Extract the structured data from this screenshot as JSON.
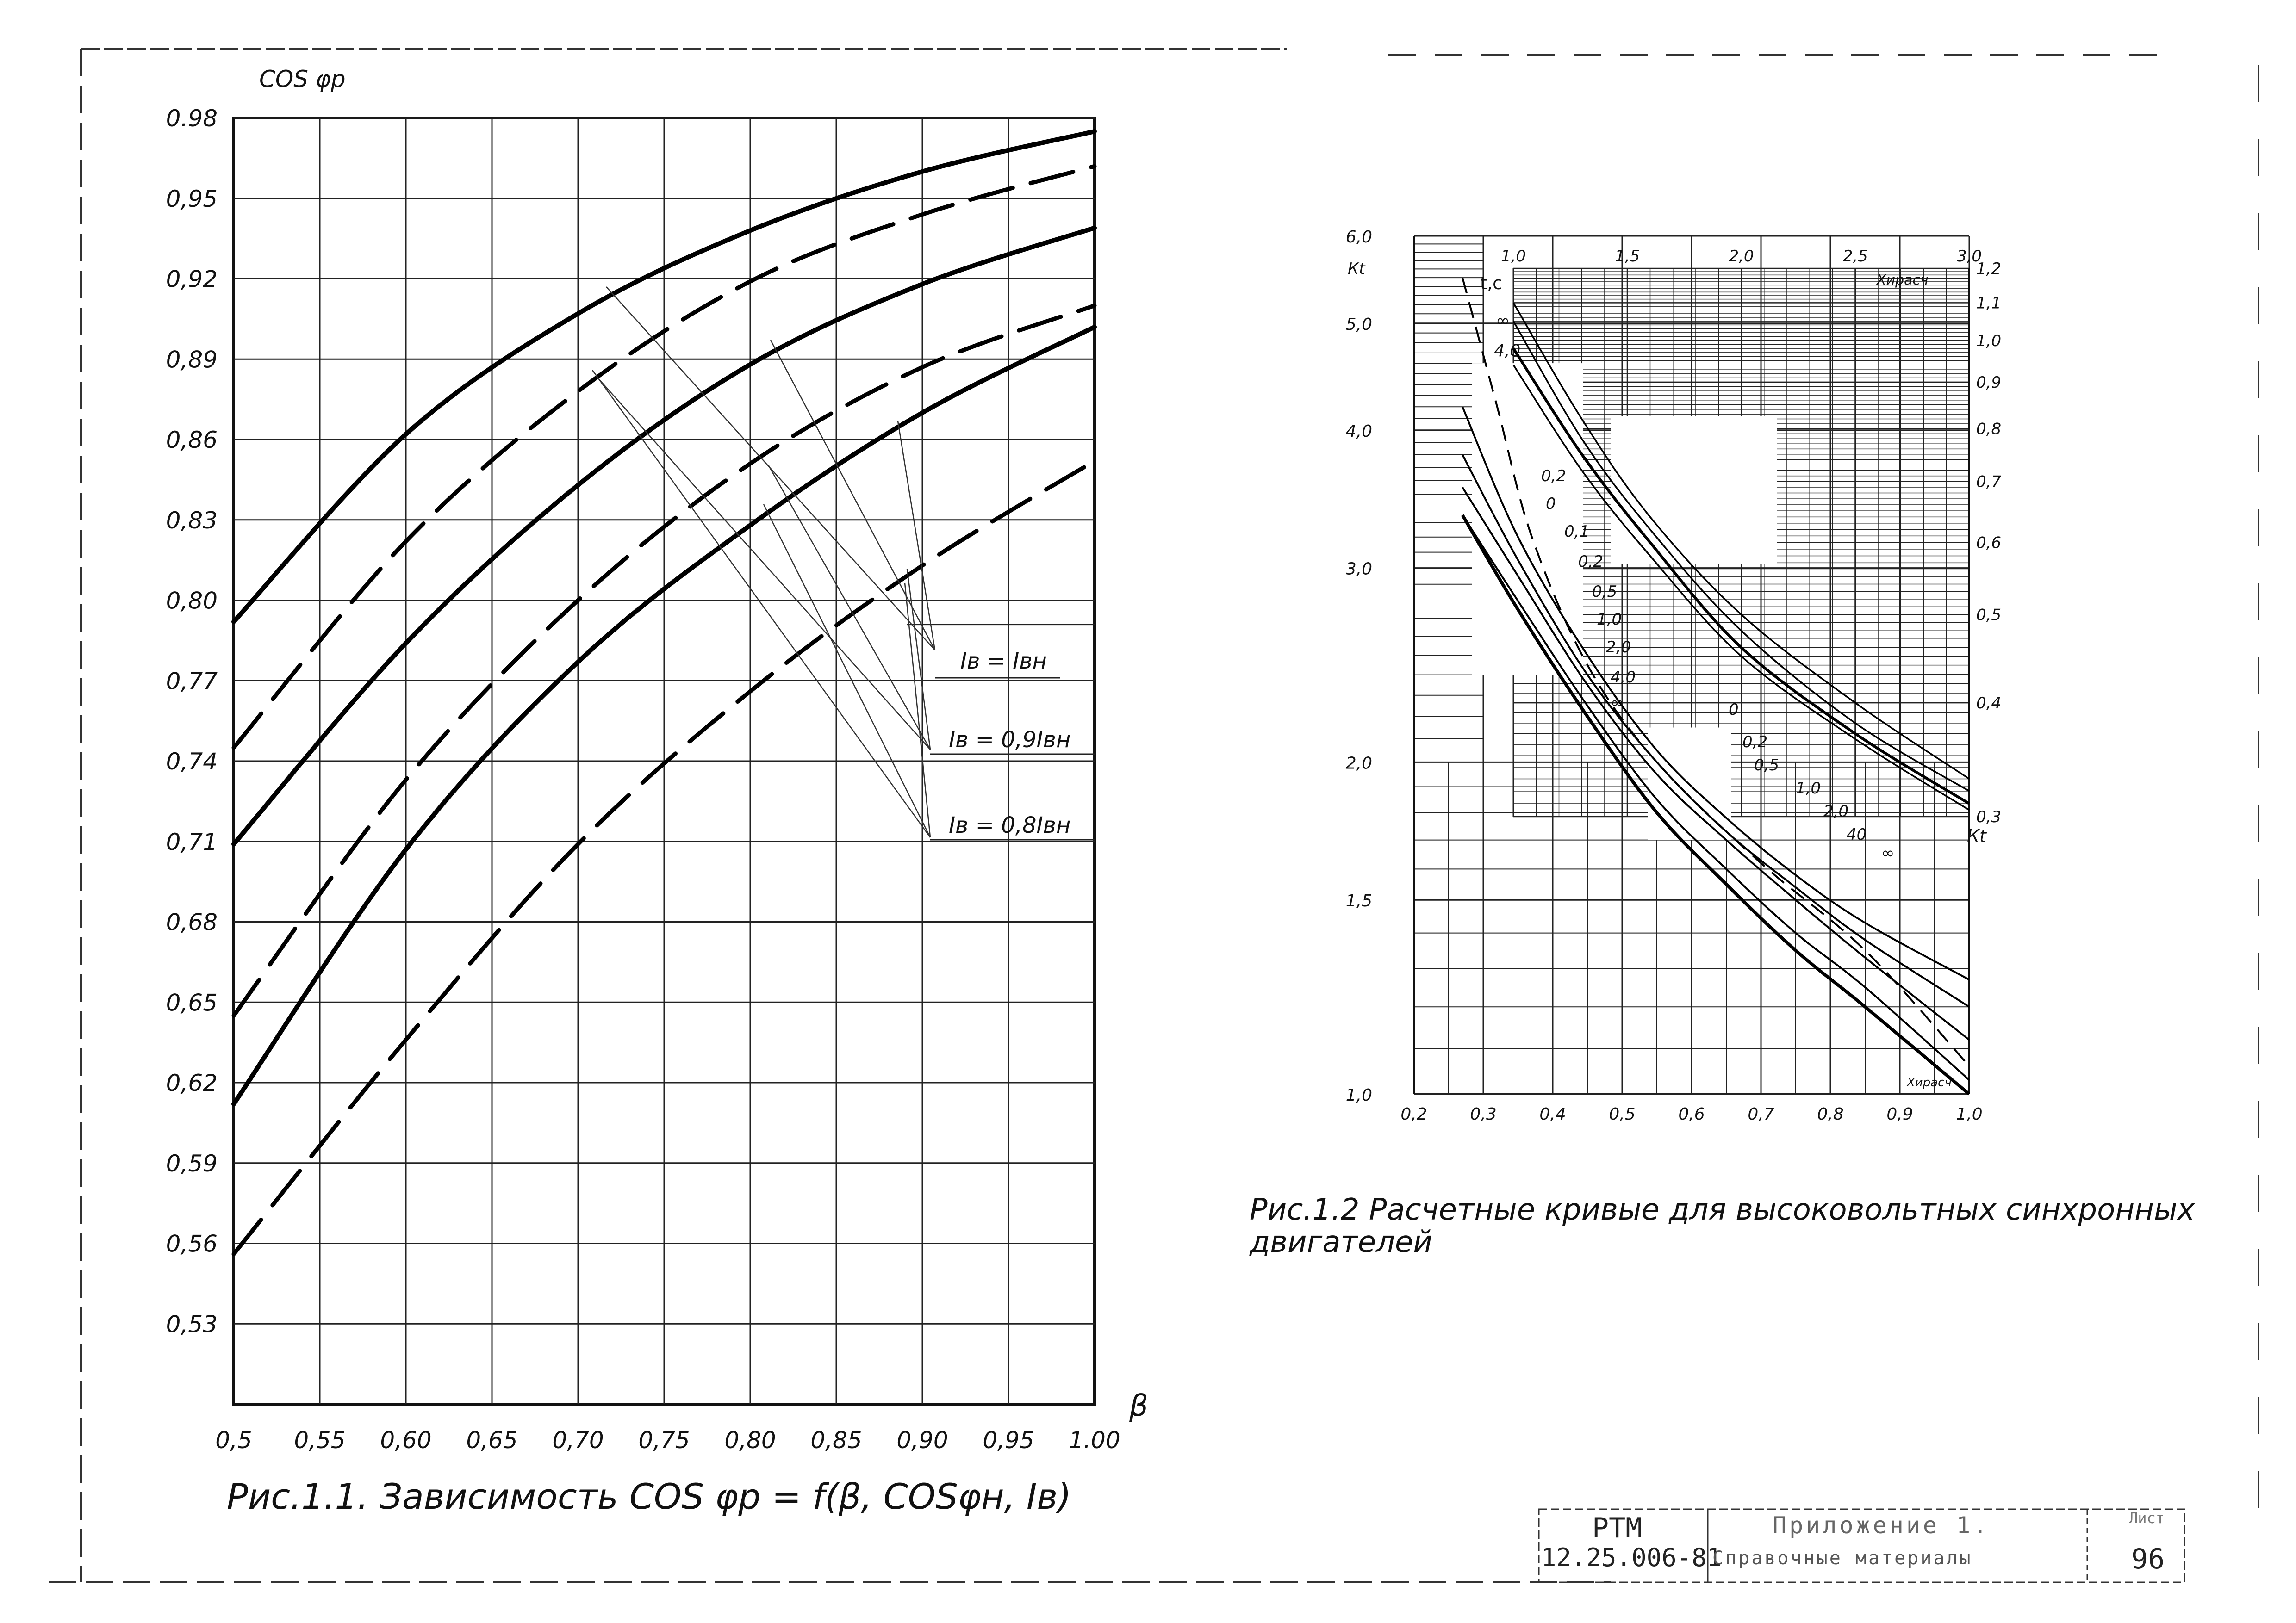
{
  "chart_data": [
    {
      "type": "line",
      "caption": "Рис.1.1. Зависимость COS φр = f(β, COSφн, Iв)",
      "ylabel": "COS φр",
      "xlabel": "β",
      "xlim": [
        0.5,
        1.0
      ],
      "ylim": [
        0.5,
        0.98
      ],
      "grid": true,
      "x_ticks": [
        "0,5",
        "0,55",
        "0,60",
        "0,65",
        "0,70",
        "0,75",
        "0,80",
        "0,85",
        "0,90",
        "0,95",
        "1.00"
      ],
      "y_ticks": [
        "0.98",
        "0,95",
        "0,92",
        "0,89",
        "0,86",
        "0,83",
        "0,80",
        "0,77",
        "0,74",
        "0,71",
        "0,68",
        "0,65",
        "0,62",
        "0,59",
        "0,56",
        "0,53"
      ],
      "annotations": [
        "Iв = Iвн",
        "Iв = 0,9Iвн",
        "Iв = 0,8Iвн"
      ],
      "x": [
        0.5,
        0.6,
        0.7,
        0.8,
        0.9,
        1.0
      ],
      "series": [
        {
          "style": "solid",
          "values": [
            0.792,
            0.862,
            0.907,
            0.938,
            0.96,
            0.975
          ]
        },
        {
          "style": "dashed",
          "values": [
            0.745,
            0.822,
            0.878,
            0.919,
            0.944,
            0.962
          ]
        },
        {
          "style": "solid",
          "values": [
            0.709,
            0.784,
            0.843,
            0.888,
            0.918,
            0.939
          ]
        },
        {
          "style": "dashed",
          "values": [
            0.645,
            0.733,
            0.8,
            0.851,
            0.887,
            0.91
          ]
        },
        {
          "style": "solid",
          "values": [
            0.612,
            0.707,
            0.777,
            0.828,
            0.87,
            0.902
          ]
        },
        {
          "style": "dashed",
          "values": [
            0.556,
            0.636,
            0.709,
            0.766,
            0.813,
            0.852
          ]
        }
      ]
    },
    {
      "type": "line",
      "caption": "Рис.1.2 Расчетные кривые для высоковольтных синхронных двигателей",
      "ylabel": "Кt",
      "xlabel": "Хирасч",
      "xlim": [
        0.2,
        1.0
      ],
      "ylim": [
        1.0,
        6.0
      ],
      "y_scale": "log",
      "grid": true,
      "x_ticks_bottom": [
        "0,2",
        "0,3",
        "0,4",
        "0,5",
        "0,6",
        "0,7",
        "0,8",
        "0,9",
        "1,0"
      ],
      "x_label_bottom": "Хирасч",
      "y_ticks_left": [
        "6,0",
        "5,0",
        "4,0",
        "3,0",
        "2,0",
        "1,5",
        "1,0"
      ],
      "x_ticks_top": [
        "1,0",
        "1,5",
        "2,0",
        "2,5",
        "3,0"
      ],
      "x_label_top": "Хирасч",
      "y_ticks_right": [
        "1,2",
        "1,1",
        "1,0",
        "0,9",
        "0,8",
        "0,7",
        "0,6",
        "0,5",
        "0,4",
        "0,3"
      ],
      "y_label_right": "Кt",
      "t_label": "t,с",
      "upper_labels": [
        "∞",
        "4,0"
      ],
      "mid_labels": [
        "0,2",
        "0",
        "0,1",
        "0,2",
        "0,5",
        "1,0",
        "2,0",
        "4,0",
        "∞"
      ],
      "low_labels": [
        "0",
        "0,2",
        "0,5",
        "1,0",
        "2,0",
        "40",
        "∞"
      ],
      "x": [
        0.27,
        0.35,
        0.45,
        0.55,
        0.65,
        0.75,
        0.85,
        1.0
      ],
      "series": [
        {
          "values": [
            3.35,
            2.75,
            2.2,
            1.8,
            1.55,
            1.35,
            1.2,
            1.0
          ]
        },
        {
          "values": [
            3.35,
            2.8,
            2.25,
            1.85,
            1.6,
            1.4,
            1.25,
            1.03
          ]
        },
        {
          "values": [
            3.55,
            2.95,
            2.35,
            1.95,
            1.7,
            1.5,
            1.33,
            1.12
          ]
        },
        {
          "values": [
            3.8,
            3.05,
            2.4,
            2.0,
            1.73,
            1.54,
            1.38,
            1.2
          ]
        },
        {
          "values": [
            4.2,
            3.2,
            2.5,
            2.05,
            1.78,
            1.58,
            1.43,
            1.27
          ]
        }
      ]
    }
  ],
  "title_block": {
    "doc_code_1": "РТМ",
    "doc_code_2": "12.25.006-81",
    "appendix": "Приложение 1.",
    "materials": "Справочные материалы",
    "sheet_label": "Лист",
    "sheet_no": "96"
  }
}
